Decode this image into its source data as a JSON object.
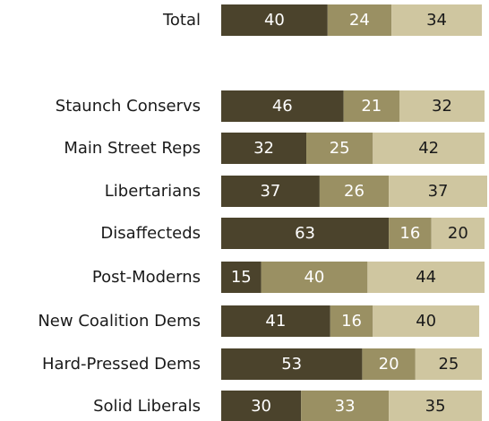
{
  "chart_data": {
    "type": "bar",
    "orientation": "horizontal",
    "stacked": true,
    "categories": [
      "Total",
      "Staunch Conservs",
      "Main Street Reps",
      "Libertarians",
      "Disaffecteds",
      "Post-Moderns",
      "New Coalition Dems",
      "Hard-Pressed Dems",
      "Solid Liberals"
    ],
    "series": [
      {
        "values": [
          40,
          46,
          32,
          37,
          63,
          15,
          41,
          53,
          30
        ],
        "color": "#4b432c",
        "label_color": "#ffffff"
      },
      {
        "values": [
          24,
          21,
          25,
          26,
          16,
          40,
          16,
          20,
          33
        ],
        "color": "#9a9063",
        "label_color": "#ffffff"
      },
      {
        "values": [
          34,
          32,
          42,
          37,
          20,
          44,
          40,
          25,
          35
        ],
        "color": "#cfc6a0",
        "label_color": "#1a1a1a"
      }
    ],
    "xlim": [
      0,
      100
    ],
    "grid": false,
    "legend": "none"
  }
}
